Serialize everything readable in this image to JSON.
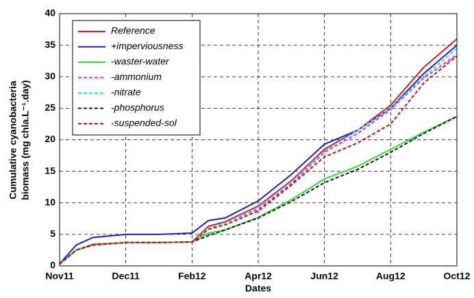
{
  "chart_data": {
    "type": "line",
    "xlabel": "Dates",
    "ylabel": [
      "Cumulative cyanobacteria",
      "biomass (mg chla.L⁻¹.day)"
    ],
    "x": [
      0,
      0.5,
      1,
      2,
      3,
      4,
      4.5,
      5,
      6,
      7,
      8,
      9,
      10,
      11,
      12
    ],
    "series": [
      {
        "name": "Reference",
        "color": "#e8141b",
        "dashed": false,
        "values": [
          0.3,
          2.5,
          3.4,
          3.7,
          3.7,
          3.8,
          6.3,
          7.0,
          9.5,
          13.5,
          18.5,
          21.5,
          25.5,
          31.5,
          36.0
        ]
      },
      {
        "name": "+imperviousness",
        "color": "#1c1ccc",
        "dashed": false,
        "values": [
          0.3,
          3.3,
          4.5,
          5.0,
          5.0,
          5.2,
          7.2,
          7.6,
          10.3,
          14.5,
          19.3,
          21.5,
          25.0,
          30.5,
          35.0
        ]
      },
      {
        "name": "-waster-water",
        "color": "#33dd33",
        "dashed": false,
        "values": [
          0.3,
          2.5,
          3.3,
          3.7,
          3.7,
          3.8,
          5.2,
          5.7,
          7.7,
          10.5,
          13.8,
          15.8,
          18.5,
          21.2,
          23.7
        ]
      },
      {
        "name": "-ammonium",
        "color": "#ee22ee",
        "dashed": true,
        "values": [
          0.3,
          2.5,
          3.3,
          3.7,
          3.7,
          3.8,
          6.0,
          6.8,
          9.0,
          13.0,
          18.0,
          21.0,
          24.8,
          29.8,
          33.5
        ]
      },
      {
        "name": "-nitrate",
        "color": "#22e8f0",
        "dashed": true,
        "values": [
          0.3,
          2.5,
          3.3,
          3.7,
          3.7,
          3.8,
          6.0,
          6.8,
          9.3,
          13.3,
          18.2,
          21.5,
          25.0,
          30.0,
          34.5
        ]
      },
      {
        "name": "-phosphorus",
        "color": "#111111",
        "dashed": true,
        "values": [
          0.3,
          2.5,
          3.3,
          3.7,
          3.7,
          3.8,
          4.8,
          5.7,
          7.6,
          10.2,
          13.2,
          15.3,
          18.0,
          21.0,
          23.7
        ]
      },
      {
        "name": "-suspended-sol",
        "color": "#c01010",
        "dashed": true,
        "values": [
          0.3,
          2.5,
          3.3,
          3.7,
          3.7,
          3.8,
          5.8,
          6.5,
          8.7,
          12.8,
          17.3,
          19.5,
          22.5,
          29.0,
          33.3
        ]
      }
    ],
    "xlim": [
      0,
      12
    ],
    "xticks": [
      {
        "value": 0,
        "label": "Nov11"
      },
      {
        "value": 2,
        "label": "Dec11"
      },
      {
        "value": 4,
        "label": "Feb12"
      },
      {
        "value": 6,
        "label": "Apr12"
      },
      {
        "value": 8,
        "label": "Jun12"
      },
      {
        "value": 10,
        "label": "Aug12"
      },
      {
        "value": 12,
        "label": "Oct12"
      }
    ],
    "ylim": [
      0,
      40
    ],
    "yticks": [
      0,
      5,
      10,
      15,
      20,
      25,
      30,
      35,
      40
    ],
    "grid": true,
    "legend": "upper left"
  }
}
